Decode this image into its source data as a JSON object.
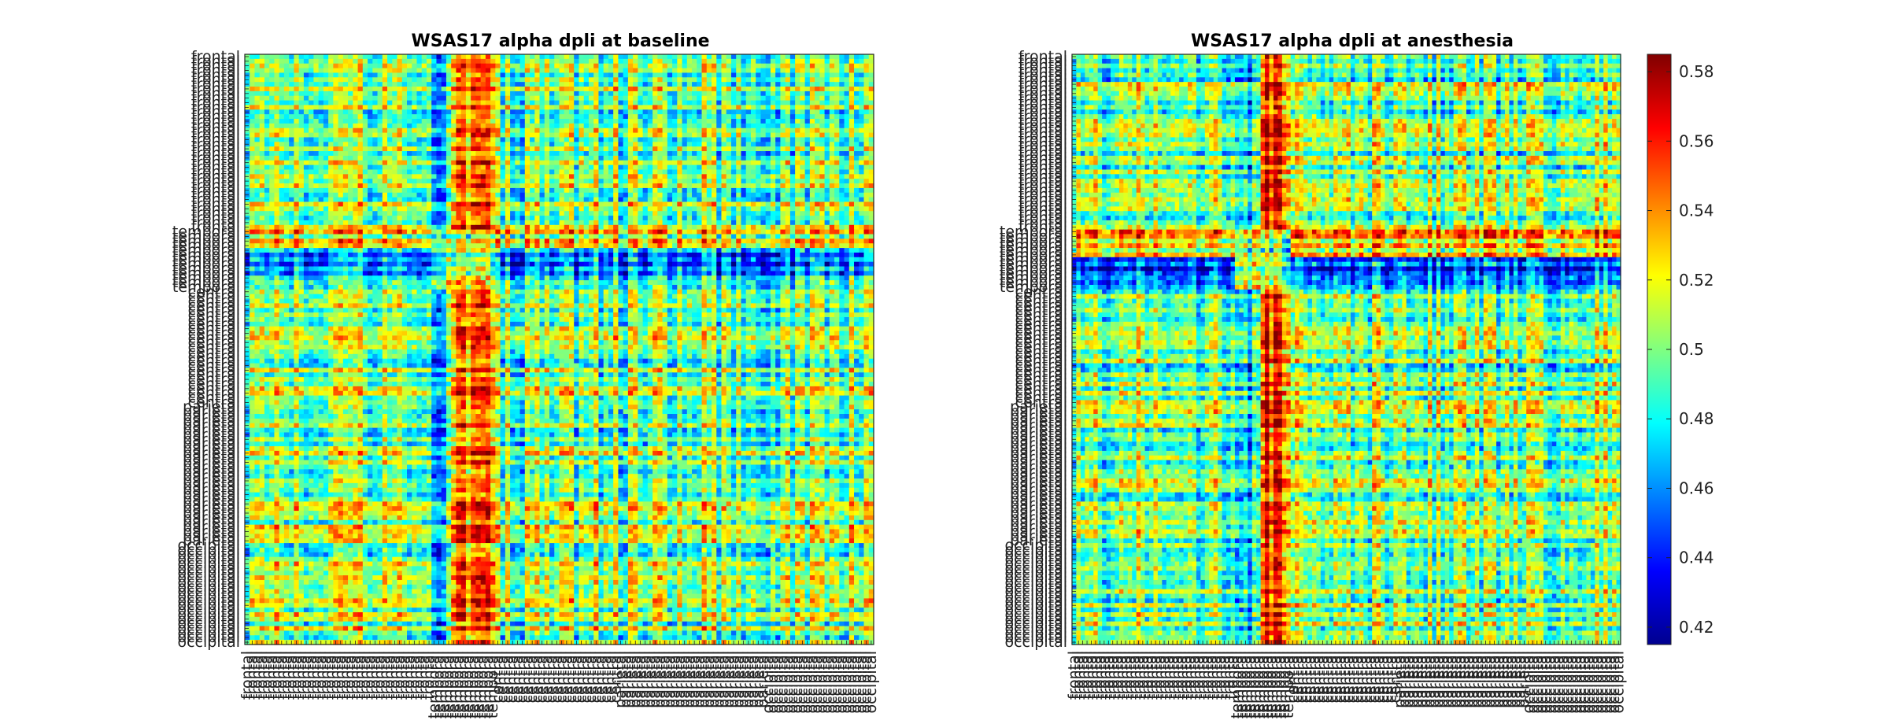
{
  "chart_data": [
    {
      "type": "heatmap",
      "title": "WSAS17 alpha dpli at baseline",
      "xlabel": "",
      "ylabel": "",
      "matrix_size": 128,
      "region_labels": [
        "frontal",
        "temporal",
        "central",
        "parietal",
        "occipital"
      ],
      "region_counts": [
        38,
        13,
        25,
        30,
        22
      ],
      "color_range": [
        0.415,
        0.585
      ],
      "colormap": "jet",
      "salient_rows": [
        "temporal"
      ],
      "salient_columns": [
        "temporal"
      ]
    },
    {
      "type": "heatmap",
      "title": "WSAS17 alpha dpli at anesthesia",
      "xlabel": "",
      "ylabel": "",
      "matrix_size": 128,
      "region_labels": [
        "frontal",
        "temporal",
        "central",
        "parietal",
        "occipital"
      ],
      "region_counts": [
        38,
        13,
        25,
        30,
        22
      ],
      "color_range": [
        0.415,
        0.585
      ],
      "colormap": "jet",
      "salient_rows": [
        "temporal"
      ],
      "salient_columns": [
        "temporal"
      ]
    }
  ],
  "colorbar": {
    "ticks": [
      "0.42",
      "0.44",
      "0.46",
      "0.48",
      "0.5",
      "0.52",
      "0.54",
      "0.56",
      "0.58"
    ],
    "tick_values": [
      0.42,
      0.44,
      0.46,
      0.48,
      0.5,
      0.52,
      0.54,
      0.56,
      0.58
    ],
    "range": [
      0.415,
      0.585
    ]
  }
}
